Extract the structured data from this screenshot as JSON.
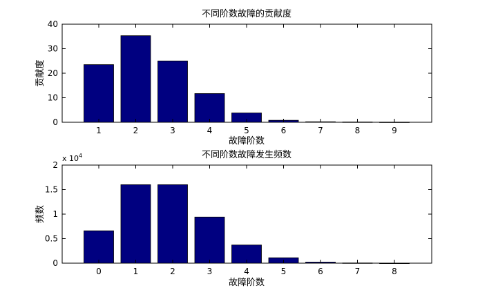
{
  "chart_data": [
    {
      "type": "bar",
      "title": "不同阶数故障的贡献度",
      "xlabel": "故障阶数",
      "ylabel": "贡献度",
      "categories": [
        "1",
        "2",
        "3",
        "4",
        "5",
        "6",
        "7",
        "8",
        "9"
      ],
      "values": [
        23.5,
        35.3,
        25.0,
        11.7,
        3.8,
        0.8,
        0.2,
        0.1,
        0.05
      ],
      "ylim": [
        0,
        40
      ],
      "yticks": [
        "0",
        "10",
        "20",
        "30",
        "40"
      ],
      "bar_color": "#000080",
      "grid": false
    },
    {
      "type": "bar",
      "title": "不同阶数故障发生频数",
      "xlabel": "故障阶数",
      "ylabel": "频数",
      "categories": [
        "0",
        "1",
        "2",
        "3",
        "4",
        "5",
        "6",
        "7",
        "8"
      ],
      "values": [
        6600,
        16000,
        16000,
        9400,
        3700,
        1100,
        220,
        40,
        5
      ],
      "ylim": [
        0,
        20000
      ],
      "yticks": [
        "0",
        "0.5",
        "1",
        "1.5",
        "2"
      ],
      "scale_base": "x 10",
      "scale_exp": "4",
      "bar_color": "#000080",
      "grid": false
    }
  ]
}
